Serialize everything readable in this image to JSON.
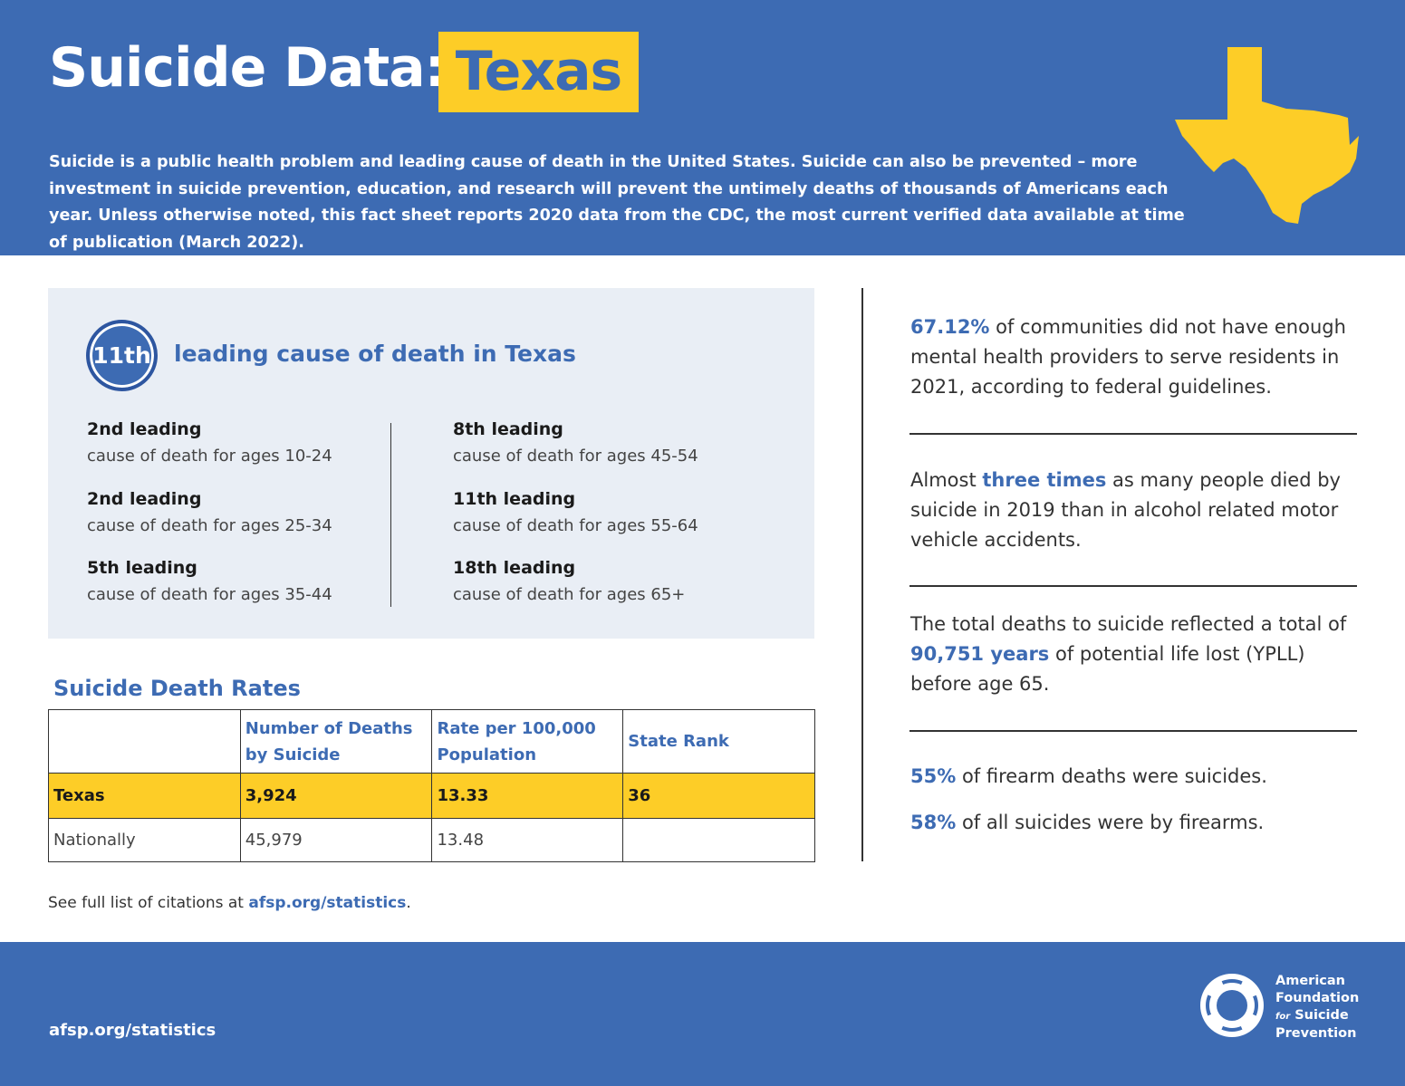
{
  "header": {
    "title": "Suicide Data:",
    "state": "Texas",
    "intro": "Suicide is a public health problem and leading cause of death in the United States. Suicide can also be prevented – more investment in suicide prevention, education, and research will prevent the untimely deaths of thousands of Americans each year. Unless otherwise noted, this fact sheet reports 2020 data from the CDC, the most current verified data available at time of publication (March 2022)."
  },
  "leading": {
    "rank": "11th",
    "text": "leading cause of death in Texas",
    "items": [
      {
        "rank": "2nd leading",
        "desc": "cause of death for ages 10-24"
      },
      {
        "rank": "2nd leading",
        "desc": "cause of death for ages 25-34"
      },
      {
        "rank": "5th leading",
        "desc": "cause of death for ages 35-44"
      },
      {
        "rank": "8th leading",
        "desc": "cause of death for ages 45-54"
      },
      {
        "rank": "11th leading",
        "desc": "cause of death for ages 55-64"
      },
      {
        "rank": "18th leading",
        "desc": "cause of death for ages 65+"
      }
    ]
  },
  "table": {
    "title": "Suicide Death Rates",
    "columns": [
      "Number of Deaths by Suicide",
      "Rate per 100,000 Population",
      "State Rank"
    ],
    "rows": [
      [
        "Texas",
        "3,924",
        "13.33",
        "36"
      ],
      [
        "Nationally",
        "45,979",
        "13.48"
      ]
    ]
  },
  "citation": {
    "text": "See full list of citations at ",
    "link": "afsp.org/statistics",
    "end": "."
  },
  "facts": [
    {
      "paragraphs": [
        [
          {
            "text": "67.12%",
            "bold": true
          },
          {
            "text": " of communities did not have enough mental health providers to serve residents in 2021, according to federal guidelines.",
            "bold": false
          }
        ]
      ]
    },
    {
      "paragraphs": [
        [
          {
            "text": "Almost ",
            "bold": false
          },
          {
            "text": "three times",
            "bold": true
          },
          {
            "text": " as many people died by suicide in 2019 than in alcohol related motor vehicle accidents.",
            "bold": false
          }
        ]
      ]
    },
    {
      "paragraphs": [
        [
          {
            "text": "The total deaths to suicide reflected a total of ",
            "bold": false
          },
          {
            "text": "90,751 years",
            "bold": true
          },
          {
            "text": " of potential life lost (YPLL) before age 65.",
            "bold": false
          }
        ]
      ]
    },
    {
      "paragraphs": [
        [
          {
            "text": "55%",
            "bold": true
          },
          {
            "text": " of firearm deaths were suicides.",
            "bold": false
          }
        ],
        [
          {
            "text": "58%",
            "bold": true
          },
          {
            "text": " of all suicides were by firearms.",
            "bold": false
          }
        ]
      ]
    }
  ],
  "footer": {
    "url": "afsp.org/statistics",
    "logo": [
      "American",
      "Foundation",
      "for",
      "Suicide",
      "Prevention"
    ]
  }
}
